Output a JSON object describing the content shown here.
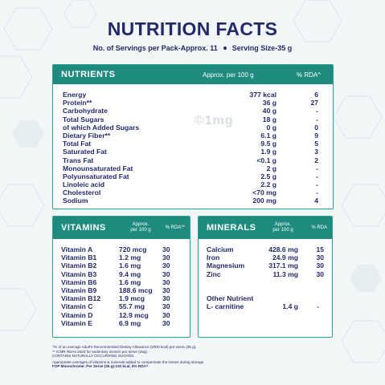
{
  "title": "NUTRITION FACTS",
  "servings": "No. of Servings per Pack-Approx. 11",
  "serving_size": "Serving Size-35 g",
  "watermark": "©1mg",
  "nutrients": {
    "heading": "NUTRIENTS",
    "col_amount": "Approx. per 100 g",
    "col_rda": "% RDA^",
    "rows": [
      {
        "name": "Energy",
        "value": "377 kcal",
        "rda": "6"
      },
      {
        "name": "Protein**",
        "value": "36 g",
        "rda": "27"
      },
      {
        "name": "Carbohydrate",
        "value": "40 g",
        "rda": "-"
      },
      {
        "name": "Total Sugars",
        "value": "18 g",
        "rda": "-"
      },
      {
        "name": "of which Added Sugars",
        "value": "0 g",
        "rda": "0"
      },
      {
        "name": "Dietary Fiber**",
        "value": "6.1 g",
        "rda": "9"
      },
      {
        "name": "Total Fat",
        "value": "9.5 g",
        "rda": "5"
      },
      {
        "name": "Saturated Fat",
        "value": "1.9 g",
        "rda": "3"
      },
      {
        "name": "Trans Fat",
        "value": "<0.1 g",
        "rda": "2"
      },
      {
        "name": "Monounsaturated Fat",
        "value": "2 g",
        "rda": "-"
      },
      {
        "name": "Polyunsaturated Fat",
        "value": "2.5 g",
        "rda": "-"
      },
      {
        "name": "Linoleic acid",
        "value": "2.2 g",
        "rda": "-"
      },
      {
        "name": "Cholesterol",
        "value": "<70 mg",
        "rda": "-"
      },
      {
        "name": "Sodium",
        "value": "200 mg",
        "rda": "4"
      }
    ]
  },
  "vitamins": {
    "heading": "VITAMINS",
    "col_amount_1": "Approx.",
    "col_amount_2": "per 100 g",
    "col_rda": "% RDA**",
    "rows": [
      {
        "name": "Vitamin A",
        "value": "720 mcg",
        "rda": "30"
      },
      {
        "name": "Vitamin B1",
        "value": "1.2 mg",
        "rda": "30"
      },
      {
        "name": "Vitamin B2",
        "value": "1.6 mg",
        "rda": "30"
      },
      {
        "name": "Vitamin B3",
        "value": "9.4 mg",
        "rda": "30"
      },
      {
        "name": "Vitamin B6",
        "value": "1.6 mg",
        "rda": "30"
      },
      {
        "name": "Vitamin B9",
        "value": "188.6 mcg",
        "rda": "30"
      },
      {
        "name": "Vitamin B12",
        "value": "1.9 mcg",
        "rda": "30"
      },
      {
        "name": "Vitamin C",
        "value": "55.7 mg",
        "rda": "30"
      },
      {
        "name": "Vitamin D",
        "value": "12.9 mcg",
        "rda": "30"
      },
      {
        "name": "Vitamin E",
        "value": "6.9 mg",
        "rda": "30"
      }
    ]
  },
  "minerals": {
    "heading": "MINERALS",
    "col_amount_1": "Approx.",
    "col_amount_2": "per 100 g",
    "col_rda": "% RDA",
    "rows": [
      {
        "name": "Calcium",
        "value": "428.6 mg",
        "rda": "15"
      },
      {
        "name": "Iron",
        "value": "24.9 mg",
        "rda": "30"
      },
      {
        "name": "Magnesium",
        "value": "317.1 mg",
        "rda": "30"
      },
      {
        "name": "Zinc",
        "value": "11.3 mg",
        "rda": "30"
      }
    ],
    "other_heading": "Other Nutrient",
    "other_rows": [
      {
        "name": "L- carnitine",
        "value": "1.4 g",
        "rda": "-"
      }
    ]
  },
  "footnotes": {
    "line1": "^% of an average Adult's Recommended Dietary Allowance (2000 kcal) per serve (35 g).",
    "line2": "** ICMR RDAs 2020 for sedentary women per serve (35g).",
    "line3": "CONTAINS NATURALLY OCCURRING SUGARS.",
    "line4": "Appropriate overages of vitamins & minerals added to compensate the losses during storage.",
    "line5": "FOP Monochrome: Per Serve (35 g)-132 kcal, 6% RDA^"
  },
  "colors": {
    "header_teal": "#1f8b7e",
    "navy_text": "#232a6b",
    "border": "#27a190"
  }
}
